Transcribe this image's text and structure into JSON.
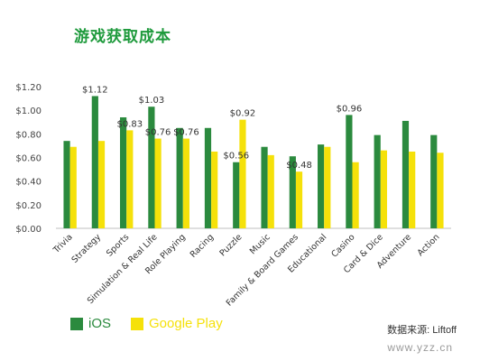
{
  "title": "游戏获取成本",
  "colors": {
    "ios": "#2b8a3e",
    "google_play": "#f5e10a",
    "title": "#1e9a3c"
  },
  "legend": {
    "ios_label": "iOS",
    "google_play_label": "Google Play"
  },
  "source": "数据来源: Liftoff",
  "watermark": "www.yzz.cn",
  "chart_data": {
    "type": "bar",
    "title": "游戏获取成本",
    "xlabel": "",
    "ylabel": "",
    "ylim": [
      0,
      1.2
    ],
    "yticks": [
      "$0.00",
      "$0.20",
      "$0.40",
      "$0.60",
      "$0.80",
      "$1.00",
      "$1.20"
    ],
    "grid": false,
    "legend_position": "bottom-left",
    "categories": [
      "Trivia",
      "Strategy",
      "Sports",
      "Simulation & Real Life",
      "Role Playing",
      "Racing",
      "Puzzle",
      "Music",
      "Family & Board Games",
      "Educational",
      "Casino",
      "Card & Dice",
      "Adventure",
      "Action"
    ],
    "series": [
      {
        "name": "iOS",
        "values": [
          0.74,
          1.12,
          0.94,
          1.03,
          0.85,
          0.85,
          0.56,
          0.69,
          0.61,
          0.71,
          0.96,
          0.79,
          0.91,
          0.79
        ]
      },
      {
        "name": "Google Play",
        "values": [
          0.69,
          0.74,
          0.83,
          0.76,
          0.76,
          0.65,
          0.92,
          0.62,
          0.48,
          0.69,
          0.56,
          0.66,
          0.65,
          0.64
        ]
      }
    ],
    "data_labels": [
      {
        "series": 0,
        "index": 1,
        "text": "$1.12"
      },
      {
        "series": 1,
        "index": 2,
        "text": "$0.83"
      },
      {
        "series": 0,
        "index": 3,
        "text": "$1.03"
      },
      {
        "series": 1,
        "index": 3,
        "text": "$0.76"
      },
      {
        "series": 1,
        "index": 4,
        "text": "$0.76"
      },
      {
        "series": 0,
        "index": 6,
        "text": "$0.56"
      },
      {
        "series": 1,
        "index": 6,
        "text": "$0.92"
      },
      {
        "series": 1,
        "index": 8,
        "text": "$0.48"
      },
      {
        "series": 0,
        "index": 10,
        "text": "$0.96"
      }
    ]
  }
}
